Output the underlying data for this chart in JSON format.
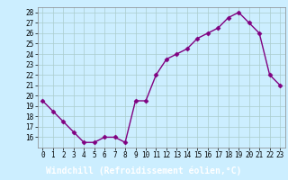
{
  "x": [
    0,
    1,
    2,
    3,
    4,
    5,
    6,
    7,
    8,
    9,
    10,
    11,
    12,
    13,
    14,
    15,
    16,
    17,
    18,
    19,
    20,
    21,
    22,
    23
  ],
  "y": [
    19.5,
    18.5,
    17.5,
    16.5,
    15.5,
    15.5,
    16.0,
    16.0,
    15.5,
    19.5,
    19.5,
    22.0,
    23.5,
    24.0,
    24.5,
    25.5,
    26.0,
    26.5,
    27.5,
    28.0,
    27.0,
    26.0,
    22.0,
    21.0
  ],
  "line_color": "#800080",
  "marker": "D",
  "marker_size": 2.5,
  "bg_color": "#cceeff",
  "grid_color": "#aacccc",
  "xlabel": "Windchill (Refroidissement éolien,°C)",
  "xlabel_color": "#ffffff",
  "xlabel_bg": "#800080",
  "ylim": [
    15.0,
    28.5
  ],
  "yticks": [
    16,
    17,
    18,
    19,
    20,
    21,
    22,
    23,
    24,
    25,
    26,
    27,
    28
  ],
  "xticks": [
    0,
    1,
    2,
    3,
    4,
    5,
    6,
    7,
    8,
    9,
    10,
    11,
    12,
    13,
    14,
    15,
    16,
    17,
    18,
    19,
    20,
    21,
    22,
    23
  ],
  "tick_label_size": 5.5,
  "xlabel_fontsize": 7,
  "line_width": 1.0
}
